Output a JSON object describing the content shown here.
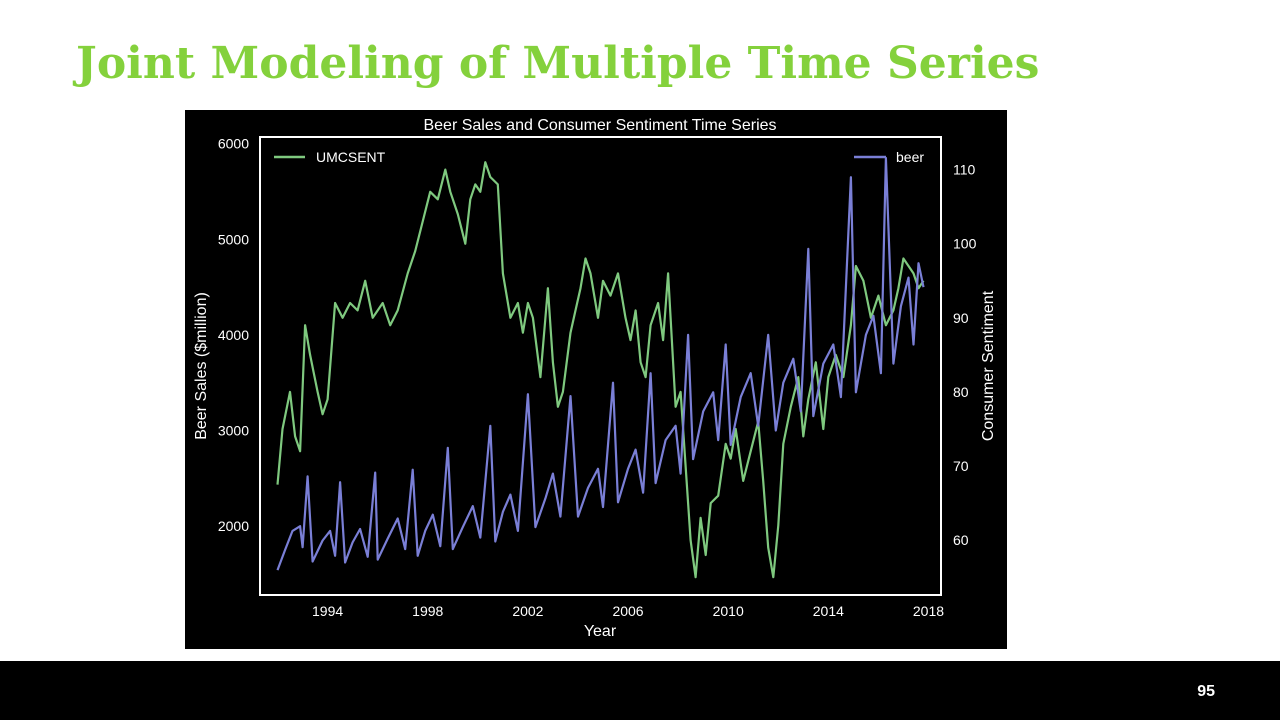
{
  "slide": {
    "title": "Joint Modeling of Multiple Time Series",
    "page_number": "95",
    "title_color": "#84d13c"
  },
  "chart_data": {
    "type": "line",
    "title": "Beer Sales and Consumer Sentiment Time Series",
    "xlabel": "Year",
    "ylabel_left": "Beer Sales ($million)",
    "ylabel_right": "Consumer Sentiment",
    "x_ticks": [
      1994,
      1998,
      2002,
      2006,
      2010,
      2014,
      2018
    ],
    "xlim": [
      1991.3,
      2018.5
    ],
    "y_left_ticks": [
      2000,
      3000,
      4000,
      5000,
      6000
    ],
    "ylim_left": [
      1280,
      6070
    ],
    "y_right_ticks": [
      60,
      70,
      80,
      90,
      100,
      110
    ],
    "ylim_right": [
      52.6,
      114.4
    ],
    "legend_left": "top-left",
    "legend_right": "top-right",
    "grid": false,
    "background": "#000000",
    "series": [
      {
        "name": "UMCSENT",
        "axis": "right",
        "color": "#7fc97f",
        "points": [
          [
            1992.0,
            67.5
          ],
          [
            1992.2,
            75
          ],
          [
            1992.5,
            80
          ],
          [
            1992.7,
            74
          ],
          [
            1992.9,
            72
          ],
          [
            1993.1,
            89
          ],
          [
            1993.3,
            85
          ],
          [
            1993.6,
            80
          ],
          [
            1993.8,
            77
          ],
          [
            1994.0,
            79
          ],
          [
            1994.3,
            92
          ],
          [
            1994.6,
            90
          ],
          [
            1994.9,
            92
          ],
          [
            1995.2,
            91
          ],
          [
            1995.5,
            95
          ],
          [
            1995.8,
            90
          ],
          [
            1996.2,
            92
          ],
          [
            1996.5,
            89
          ],
          [
            1996.8,
            91
          ],
          [
            1997.2,
            96
          ],
          [
            1997.5,
            99
          ],
          [
            1997.8,
            103
          ],
          [
            1998.1,
            107
          ],
          [
            1998.4,
            106
          ],
          [
            1998.7,
            110
          ],
          [
            1998.9,
            107
          ],
          [
            1999.2,
            104
          ],
          [
            1999.5,
            100
          ],
          [
            1999.7,
            106
          ],
          [
            1999.9,
            108
          ],
          [
            2000.1,
            107
          ],
          [
            2000.3,
            111
          ],
          [
            2000.5,
            109
          ],
          [
            2000.8,
            108
          ],
          [
            2001.0,
            96
          ],
          [
            2001.3,
            90
          ],
          [
            2001.6,
            92
          ],
          [
            2001.8,
            88
          ],
          [
            2002.0,
            92
          ],
          [
            2002.2,
            90
          ],
          [
            2002.5,
            82
          ],
          [
            2002.8,
            94
          ],
          [
            2003.0,
            84
          ],
          [
            2003.2,
            78
          ],
          [
            2003.4,
            80
          ],
          [
            2003.7,
            88
          ],
          [
            2003.9,
            91
          ],
          [
            2004.1,
            94
          ],
          [
            2004.3,
            98
          ],
          [
            2004.5,
            96
          ],
          [
            2004.8,
            90
          ],
          [
            2005.0,
            95
          ],
          [
            2005.3,
            93
          ],
          [
            2005.6,
            96
          ],
          [
            2005.9,
            90
          ],
          [
            2006.1,
            87
          ],
          [
            2006.3,
            91
          ],
          [
            2006.5,
            84
          ],
          [
            2006.7,
            82
          ],
          [
            2006.9,
            89
          ],
          [
            2007.2,
            92
          ],
          [
            2007.4,
            87
          ],
          [
            2007.6,
            96
          ],
          [
            2007.9,
            78
          ],
          [
            2008.1,
            80
          ],
          [
            2008.3,
            70
          ],
          [
            2008.5,
            60
          ],
          [
            2008.7,
            55
          ],
          [
            2008.9,
            63
          ],
          [
            2009.1,
            58
          ],
          [
            2009.3,
            65
          ],
          [
            2009.6,
            66
          ],
          [
            2009.9,
            73
          ],
          [
            2010.1,
            71
          ],
          [
            2010.3,
            75
          ],
          [
            2010.6,
            68
          ],
          [
            2010.9,
            72
          ],
          [
            2011.2,
            76
          ],
          [
            2011.4,
            68
          ],
          [
            2011.6,
            59
          ],
          [
            2011.8,
            55
          ],
          [
            2012.0,
            62
          ],
          [
            2012.2,
            73
          ],
          [
            2012.5,
            78
          ],
          [
            2012.8,
            82
          ],
          [
            2013.0,
            74
          ],
          [
            2013.2,
            79
          ],
          [
            2013.5,
            84
          ],
          [
            2013.8,
            75
          ],
          [
            2014.0,
            82
          ],
          [
            2014.3,
            85
          ],
          [
            2014.6,
            82
          ],
          [
            2014.9,
            89
          ],
          [
            2015.1,
            97
          ],
          [
            2015.4,
            95
          ],
          [
            2015.7,
            90
          ],
          [
            2016.0,
            93
          ],
          [
            2016.3,
            89
          ],
          [
            2016.6,
            91
          ],
          [
            2016.8,
            94
          ],
          [
            2017.0,
            98
          ],
          [
            2017.2,
            97
          ],
          [
            2017.4,
            96
          ],
          [
            2017.6,
            94
          ],
          [
            2017.8,
            95
          ]
        ]
      },
      {
        "name": "beer",
        "axis": "left",
        "color": "#7a7fd6",
        "points": [
          [
            1992.0,
            1540
          ],
          [
            1992.3,
            1750
          ],
          [
            1992.6,
            1950
          ],
          [
            1992.9,
            2000
          ],
          [
            1993.0,
            1780
          ],
          [
            1993.2,
            2520
          ],
          [
            1993.4,
            1630
          ],
          [
            1993.8,
            1850
          ],
          [
            1994.1,
            1950
          ],
          [
            1994.3,
            1690
          ],
          [
            1994.5,
            2460
          ],
          [
            1994.7,
            1620
          ],
          [
            1995.0,
            1830
          ],
          [
            1995.3,
            1970
          ],
          [
            1995.6,
            1680
          ],
          [
            1995.9,
            2560
          ],
          [
            1996.0,
            1650
          ],
          [
            1996.4,
            1870
          ],
          [
            1996.8,
            2080
          ],
          [
            1997.1,
            1760
          ],
          [
            1997.4,
            2590
          ],
          [
            1997.6,
            1690
          ],
          [
            1997.9,
            1950
          ],
          [
            1998.2,
            2120
          ],
          [
            1998.5,
            1790
          ],
          [
            1998.8,
            2820
          ],
          [
            1999.0,
            1760
          ],
          [
            1999.4,
            1990
          ],
          [
            1999.8,
            2210
          ],
          [
            2000.1,
            1880
          ],
          [
            2000.5,
            3050
          ],
          [
            2000.7,
            1840
          ],
          [
            2001.0,
            2150
          ],
          [
            2001.3,
            2330
          ],
          [
            2001.6,
            1950
          ],
          [
            2002.0,
            3380
          ],
          [
            2002.3,
            1990
          ],
          [
            2002.7,
            2290
          ],
          [
            2003.0,
            2550
          ],
          [
            2003.3,
            2100
          ],
          [
            2003.7,
            3360
          ],
          [
            2004.0,
            2100
          ],
          [
            2004.4,
            2400
          ],
          [
            2004.8,
            2600
          ],
          [
            2005.0,
            2200
          ],
          [
            2005.4,
            3500
          ],
          [
            2005.6,
            2250
          ],
          [
            2006.0,
            2600
          ],
          [
            2006.3,
            2800
          ],
          [
            2006.6,
            2350
          ],
          [
            2006.9,
            3600
          ],
          [
            2007.1,
            2450
          ],
          [
            2007.5,
            2900
          ],
          [
            2007.9,
            3050
          ],
          [
            2008.1,
            2550
          ],
          [
            2008.4,
            4000
          ],
          [
            2008.6,
            2700
          ],
          [
            2009.0,
            3200
          ],
          [
            2009.4,
            3400
          ],
          [
            2009.6,
            2900
          ],
          [
            2009.9,
            3900
          ],
          [
            2010.1,
            2850
          ],
          [
            2010.5,
            3350
          ],
          [
            2010.9,
            3600
          ],
          [
            2011.2,
            3050
          ],
          [
            2011.6,
            4000
          ],
          [
            2011.9,
            3000
          ],
          [
            2012.2,
            3500
          ],
          [
            2012.6,
            3750
          ],
          [
            2012.9,
            3200
          ],
          [
            2013.2,
            4900
          ],
          [
            2013.4,
            3150
          ],
          [
            2013.8,
            3700
          ],
          [
            2014.2,
            3900
          ],
          [
            2014.5,
            3350
          ],
          [
            2014.9,
            5650
          ],
          [
            2015.1,
            3400
          ],
          [
            2015.5,
            4000
          ],
          [
            2015.8,
            4200
          ],
          [
            2016.1,
            3600
          ],
          [
            2016.3,
            5850
          ],
          [
            2016.6,
            3700
          ],
          [
            2016.9,
            4300
          ],
          [
            2017.2,
            4600
          ],
          [
            2017.4,
            3900
          ],
          [
            2017.6,
            4750
          ],
          [
            2017.8,
            4500
          ]
        ]
      }
    ]
  }
}
